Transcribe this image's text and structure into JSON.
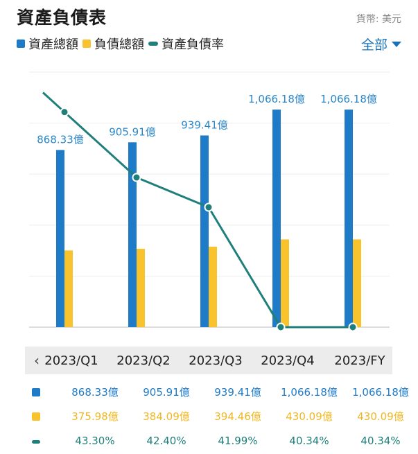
{
  "header": {
    "title": "資產負債表",
    "currency": "貨幣: 美元"
  },
  "legend": [
    {
      "label": "資產總額",
      "color": "#1e7bc8",
      "shape": "square"
    },
    {
      "label": "負債總額",
      "color": "#f9c32e",
      "shape": "square"
    },
    {
      "label": "資產負債率",
      "color": "#1f7f7a",
      "shape": "line"
    }
  ],
  "filter": {
    "label": "全部"
  },
  "nav": {
    "prev_icon": "‹"
  },
  "chart_data": {
    "type": "bar",
    "categories": [
      "2023/Q1",
      "2023/Q2",
      "2023/Q3",
      "2023/Q4",
      "2023/FY"
    ],
    "series": [
      {
        "name": "資產總額",
        "kind": "bar",
        "color": "#1e7bc8",
        "values": [
          868.33,
          905.91,
          939.41,
          1066.18,
          1066.18
        ],
        "labels": [
          "868.33億",
          "905.91億",
          "939.41億",
          "1,066.18億",
          "1,066.18億"
        ]
      },
      {
        "name": "負債總額",
        "kind": "bar",
        "color": "#f9c32e",
        "values": [
          375.98,
          384.09,
          394.46,
          430.09,
          430.09
        ],
        "labels": [
          "375.98億",
          "384.09億",
          "394.46億",
          "430.09億",
          "430.09億"
        ]
      },
      {
        "name": "資產負債率",
        "kind": "line",
        "color": "#1f7f7a",
        "values": [
          43.3,
          42.4,
          41.99,
          40.34,
          40.34
        ],
        "labels": [
          "43.30%",
          "42.40%",
          "41.99%",
          "40.34%",
          "40.34%"
        ]
      }
    ],
    "bar_ylim": [
      0,
      1250
    ],
    "line_ylim": [
      40.34,
      43.85
    ],
    "grid": true
  },
  "table": {
    "rows": [
      {
        "series": "資產總額",
        "color": "#1e7bc8",
        "text_color": "#1e7bc8",
        "cells": [
          "868.33億",
          "905.91億",
          "939.41億",
          "1,066.18億",
          "1,066.18億"
        ]
      },
      {
        "series": "負債總額",
        "color": "#f9c32e",
        "text_color": "#f0b820",
        "cells": [
          "375.98億",
          "384.09億",
          "394.46億",
          "430.09億",
          "430.09億"
        ]
      },
      {
        "series": "資產負債率",
        "color": "#1f7f7a",
        "text_color": "#1f7f7a",
        "cells": [
          "43.30%",
          "42.40%",
          "41.99%",
          "40.34%",
          "40.34%"
        ]
      }
    ]
  }
}
